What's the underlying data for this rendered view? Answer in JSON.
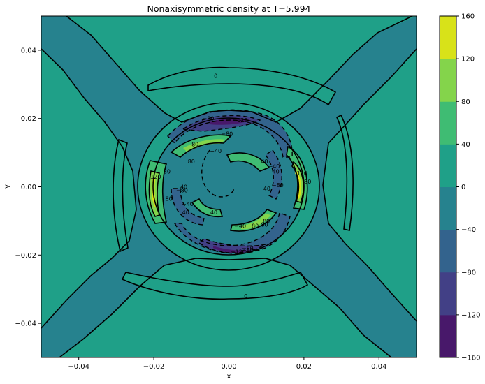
{
  "chart_data": {
    "type": "contour",
    "title": "Nonaxisymmetric density at T=5.994",
    "xlabel": "x",
    "ylabel": "y",
    "xlim": [
      -0.05,
      0.05
    ],
    "ylim": [
      -0.05,
      0.05
    ],
    "xticks": [
      -0.04,
      -0.02,
      0.0,
      0.02,
      0.04
    ],
    "xtick_labels": [
      "−0.04",
      "−0.02",
      "0.00",
      "0.02",
      "0.04"
    ],
    "yticks": [
      -0.04,
      -0.02,
      0.0,
      0.02,
      0.04
    ],
    "ytick_labels": [
      "−0.04",
      "−0.02",
      "0.00",
      "0.02",
      "0.04"
    ],
    "levels": [
      -160,
      -120,
      -80,
      -40,
      0,
      40,
      80,
      120,
      160
    ],
    "colorbar_labels": [
      "−160",
      "−120",
      "−80",
      "−40",
      "0",
      "40",
      "80",
      "120",
      "160"
    ],
    "colormap": [
      "#48186a",
      "#424086",
      "#33638d",
      "#26828e",
      "#1fa088",
      "#3fbc73",
      "#84d44b",
      "#d8e219"
    ],
    "contour_labels": [
      {
        "text": "0",
        "x": -0.0035,
        "y": 0.0325
      },
      {
        "text": "0",
        "x": 0.0045,
        "y": -0.032
      },
      {
        "text": "−40",
        "x": 0.0095,
        "y": -0.0005
      },
      {
        "text": "−80",
        "x": -0.0055,
        "y": 0.02
      },
      {
        "text": "−120",
        "x": 0.003,
        "y": 0.0195
      },
      {
        "text": "−80",
        "x": 0.005,
        "y": -0.018
      },
      {
        "text": "−120",
        "x": 0.0025,
        "y": -0.019
      },
      {
        "text": "120",
        "x": -0.0195,
        "y": 0.003
      },
      {
        "text": "120",
        "x": 0.0195,
        "y": 0.004
      },
      {
        "text": "80",
        "x": 0.021,
        "y": 0.0015
      },
      {
        "text": "80",
        "x": -0.0165,
        "y": 0.0045
      },
      {
        "text": "80",
        "x": -0.009,
        "y": 0.0125
      },
      {
        "text": "80",
        "x": -0.016,
        "y": -0.0035
      },
      {
        "text": "80",
        "x": 0.0095,
        "y": -0.011
      },
      {
        "text": "80",
        "x": 0.007,
        "y": -0.0115
      },
      {
        "text": "40",
        "x": -0.0115,
        "y": -0.0075
      },
      {
        "text": "40",
        "x": 0.0095,
        "y": 0.0075
      },
      {
        "text": "40",
        "x": -0.012,
        "y": 0.0
      },
      {
        "text": "40",
        "x": 0.0125,
        "y": 0.0045
      },
      {
        "text": "40",
        "x": -0.004,
        "y": -0.0075
      },
      {
        "text": "80",
        "x": 0.01,
        "y": -0.01
      },
      {
        "text": "80",
        "x": -0.01,
        "y": 0.0075
      },
      {
        "text": "−80",
        "x": 0.005,
        "y": -0.0185
      },
      {
        "text": "−40",
        "x": 0.012,
        "y": 0.006
      },
      {
        "text": "−40",
        "x": -0.011,
        "y": -0.005
      },
      {
        "text": "−80",
        "x": -0.0005,
        "y": 0.0155
      },
      {
        "text": "−40",
        "x": -0.0035,
        "y": 0.0105
      },
      {
        "text": "−40",
        "x": 0.003,
        "y": -0.0115
      },
      {
        "text": "−80",
        "x": 0.013,
        "y": 0.0005
      },
      {
        "text": "−80",
        "x": -0.0125,
        "y": -0.001
      }
    ]
  }
}
